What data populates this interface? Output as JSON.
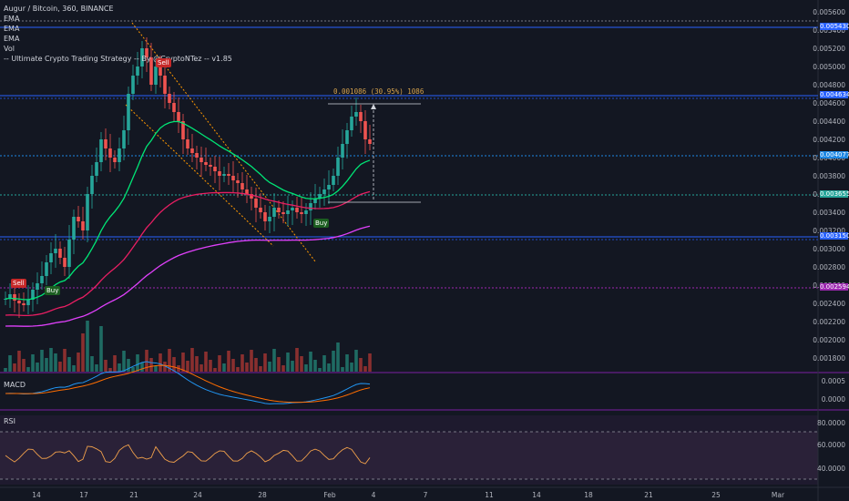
{
  "header": {
    "symbol_line": "Augur / Bitcoin, 360, BINANCE",
    "indicators": [
      "EMA",
      "EMA",
      "EMA",
      "Vol",
      "-- Ultimate Crypto Trading Strategy -- By @CryptoNTez -- v1.85"
    ]
  },
  "price_axis": {
    "labels": [
      "0.005600",
      "0.005400",
      "0.005200",
      "0.005000",
      "0.004800",
      "0.004600",
      "0.004400",
      "0.004200",
      "0.004000",
      "0.003800",
      "0.003600",
      "0.003400",
      "0.003200",
      "0.003000",
      "0.002800",
      "0.002600",
      "0.002400",
      "0.002200",
      "0.002000",
      "0.001800"
    ],
    "levels": [
      {
        "label": "0.005430",
        "color": "#2962ff"
      },
      {
        "label": "0.004634",
        "color": "#2962ff"
      },
      {
        "label": "0.004077",
        "color": "#1e88e5"
      },
      {
        "label": "0.003655",
        "color": "#26a69a"
      },
      {
        "label": "0.003150",
        "color": "#2962ff"
      },
      {
        "label": "0.002594",
        "color": "#9c27b0"
      }
    ]
  },
  "time_axis": {
    "labels": [
      "14",
      "17",
      "21",
      "24",
      "28",
      "Feb",
      "4",
      "7",
      "11",
      "14",
      "18",
      "21",
      "25",
      "Mar"
    ]
  },
  "measurement": {
    "text": "0.001086 (30.95%) 1086"
  },
  "signals": [
    {
      "label": "Sell",
      "kind": "sell"
    },
    {
      "label": "Buy",
      "kind": "buy"
    },
    {
      "label": "Sell",
      "kind": "sell"
    },
    {
      "label": "Buy",
      "kind": "buy"
    }
  ],
  "macd": {
    "title": "MACD",
    "labels": [
      "0.0005",
      "0.0000"
    ]
  },
  "rsi": {
    "title": "RSI",
    "labels": [
      "80.0000",
      "60.0000",
      "40.0000"
    ]
  },
  "colors": {
    "background": "#131722",
    "up": "#26a69a",
    "down": "#ef5350",
    "ema_fast": "#00e676",
    "ema_mid": "#e91e63",
    "ema_slow": "#e040fb",
    "pane_border": "#7b1fa2"
  }
}
